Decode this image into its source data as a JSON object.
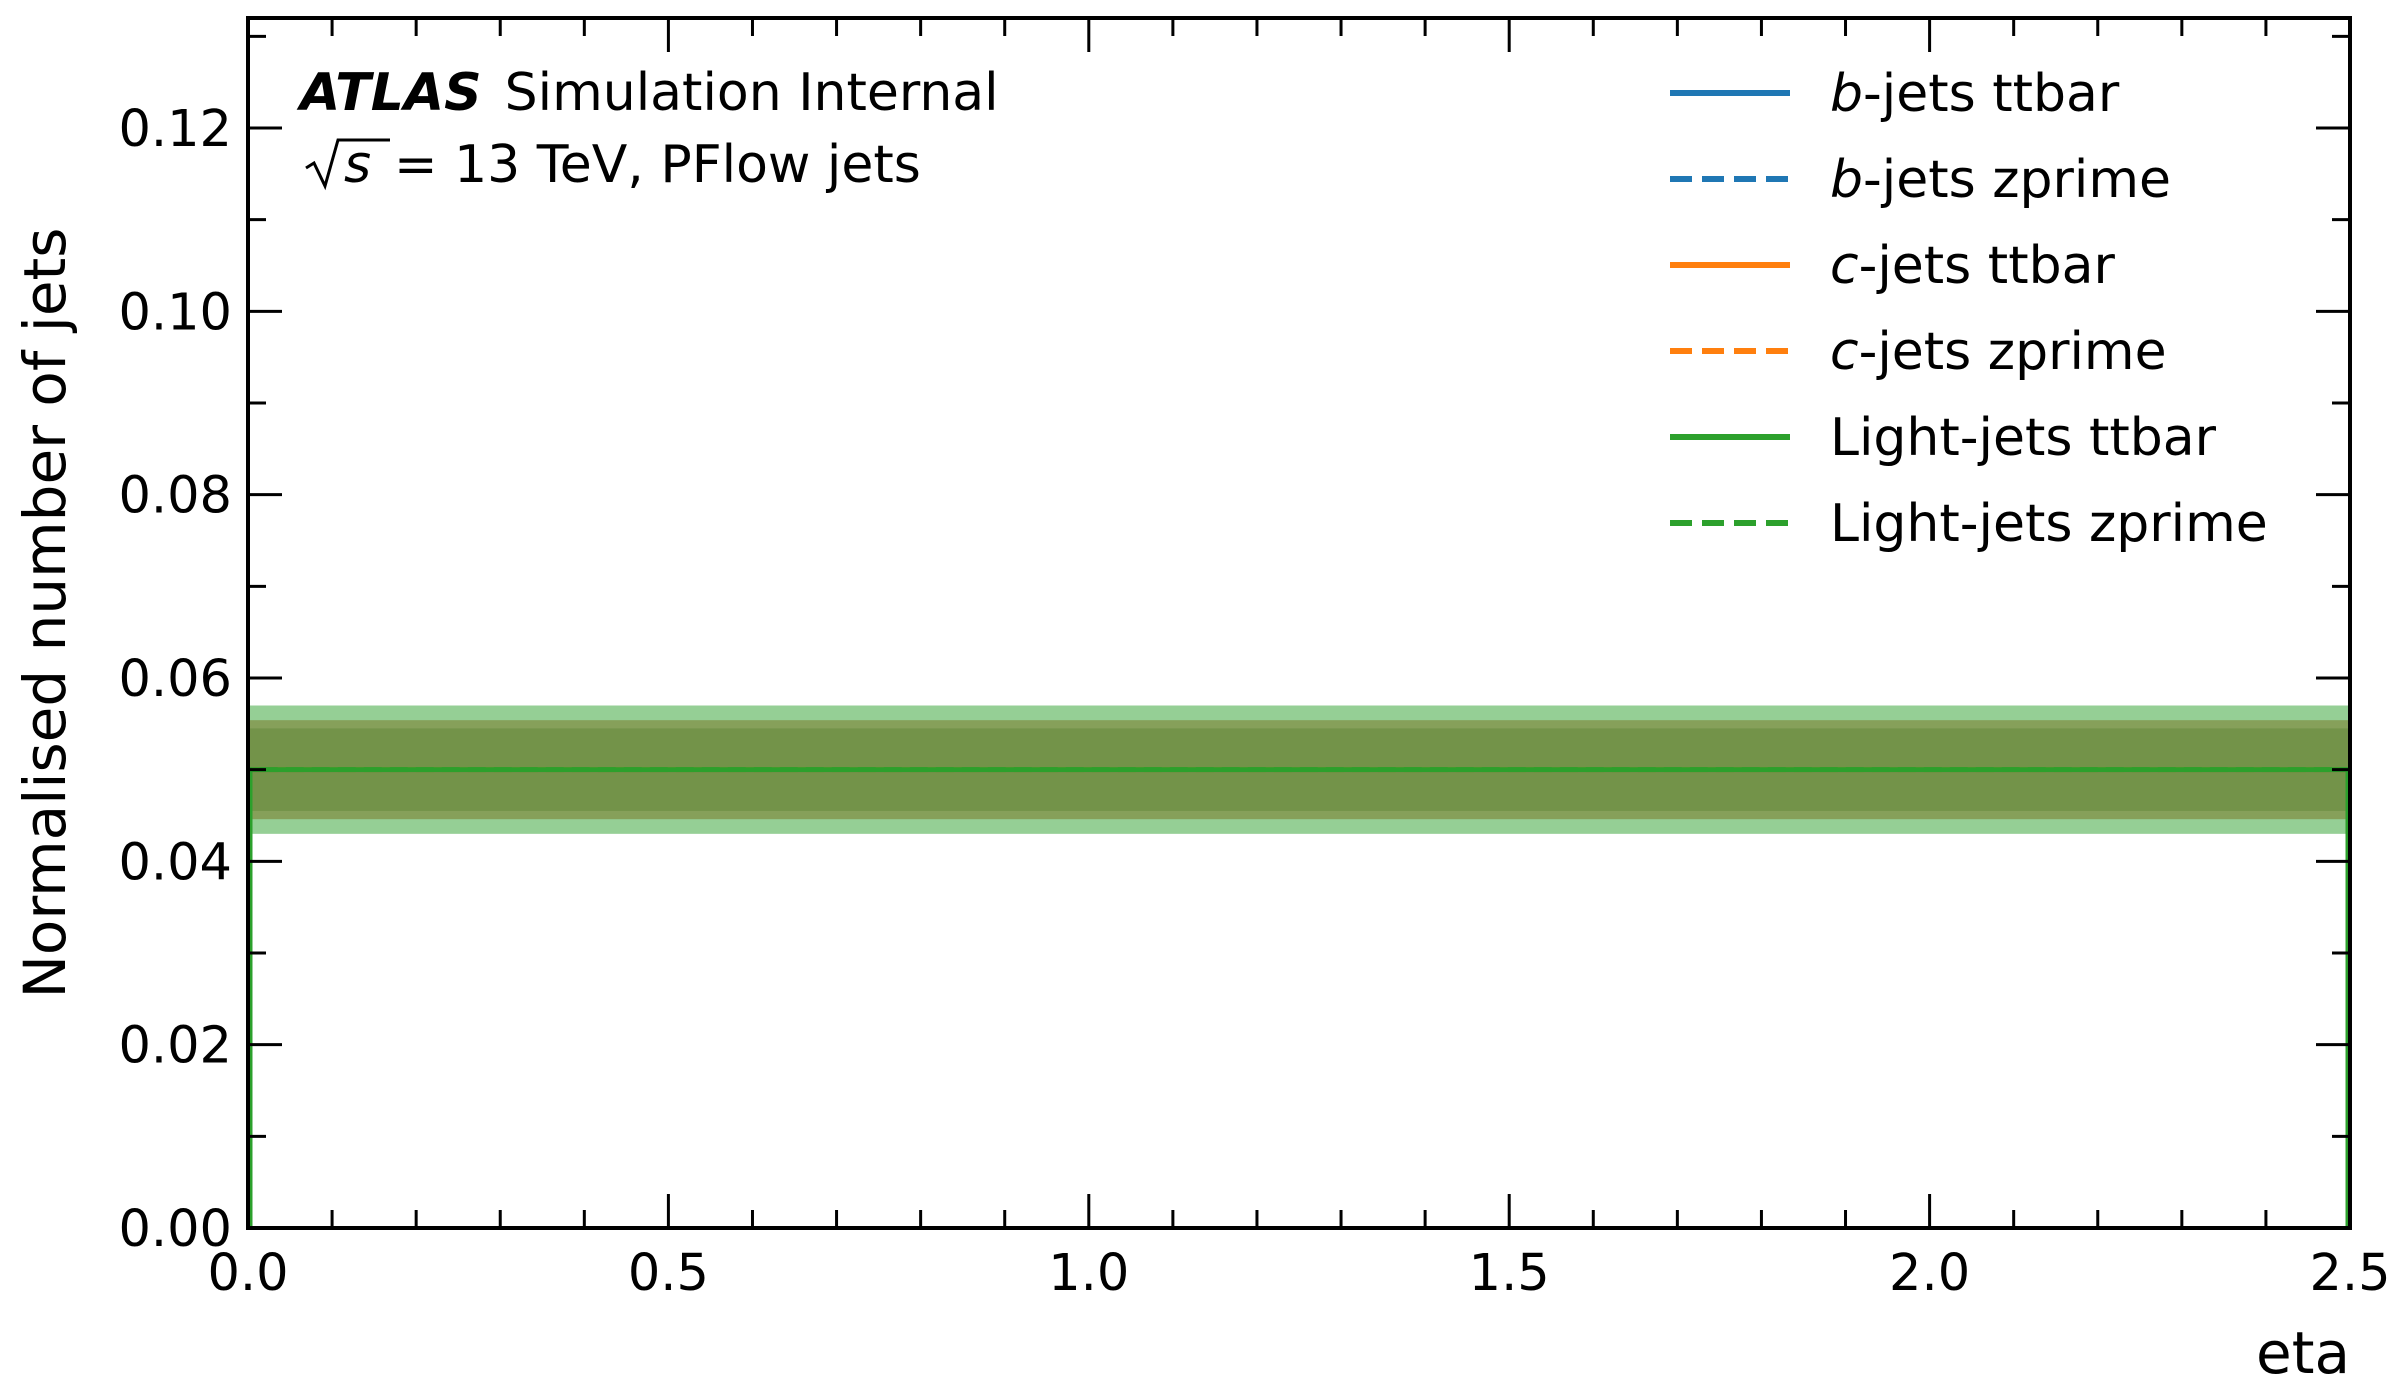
{
  "chart_data": {
    "type": "line",
    "xlabel": "eta",
    "ylabel": "Normalised number of jets",
    "xlim": [
      0.0,
      2.5
    ],
    "ylim": [
      0.0,
      0.132
    ],
    "x_ticks": [
      "0.0",
      "0.5",
      "1.0",
      "1.5",
      "2.0",
      "2.5"
    ],
    "x_tick_values": [
      0.0,
      0.5,
      1.0,
      1.5,
      2.0,
      2.5
    ],
    "y_ticks": [
      "0.00",
      "0.02",
      "0.04",
      "0.06",
      "0.08",
      "0.10",
      "0.12"
    ],
    "y_tick_values": [
      0.0,
      0.02,
      0.04,
      0.06,
      0.08,
      0.1,
      0.12
    ],
    "grid": false,
    "legend_position": "top-right",
    "atlas_label": {
      "experiment": "ATLAS",
      "status": "Simulation Internal",
      "energy_prefix": "s",
      "energy_suffix": "= 13 TeV, PFlow jets"
    },
    "series": [
      {
        "name_italic": "b",
        "name_rest": "-jets ttbar",
        "color": "#1f77b4",
        "style": "solid",
        "x": [
          0.0,
          2.5
        ],
        "values": [
          0.05,
          0.05
        ]
      },
      {
        "name_italic": "b",
        "name_rest": "-jets zprime",
        "color": "#1f77b4",
        "style": "dashed",
        "x": [
          0.0,
          2.5
        ],
        "values": [
          0.05,
          0.05
        ]
      },
      {
        "name_italic": "c",
        "name_rest": "-jets ttbar",
        "color": "#ff7f0e",
        "style": "solid",
        "x": [
          0.0,
          2.5
        ],
        "values": [
          0.05,
          0.05
        ]
      },
      {
        "name_italic": "c",
        "name_rest": "-jets zprime",
        "color": "#ff7f0e",
        "style": "dashed",
        "x": [
          0.0,
          2.5
        ],
        "values": [
          0.05,
          0.05
        ]
      },
      {
        "name_italic": "",
        "name_rest": "Light-jets ttbar",
        "color": "#2ca02c",
        "style": "solid",
        "x": [
          0.0,
          2.5
        ],
        "values": [
          0.05,
          0.05
        ]
      },
      {
        "name_italic": "",
        "name_rest": "Light-jets zprime",
        "color": "#2ca02c",
        "style": "dashed",
        "x": [
          0.0,
          2.5
        ],
        "values": [
          0.05,
          0.05
        ]
      }
    ],
    "uncertainty_bands": [
      {
        "color": "#2ca02c",
        "opacity": 0.5,
        "lower": 0.043,
        "upper": 0.057
      },
      {
        "color": "#7a7a2a",
        "opacity": 0.55,
        "lower": 0.0446,
        "upper": 0.0554
      },
      {
        "color": "#4f7a2c",
        "opacity": 0.35,
        "lower": 0.0455,
        "upper": 0.0545
      }
    ]
  }
}
